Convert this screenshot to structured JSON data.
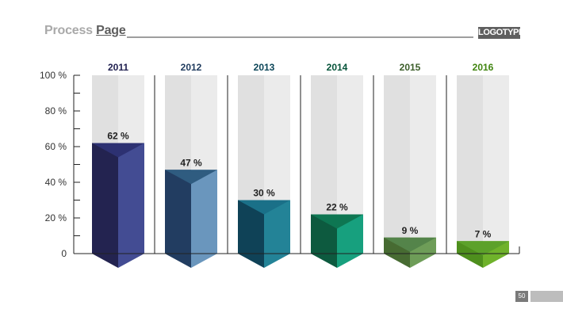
{
  "header": {
    "title_light": "Process",
    "title_strong": "Page",
    "logo": "LOGOTYPE"
  },
  "footer": {
    "page_number": "50"
  },
  "chart_data": {
    "type": "bar",
    "categories": [
      "2011",
      "2012",
      "2013",
      "2014",
      "2015",
      "2016"
    ],
    "values": [
      62,
      47,
      30,
      22,
      9,
      7
    ],
    "value_labels": [
      "62 %",
      "47 %",
      "30 %",
      "22 %",
      "9 %",
      "7 %"
    ],
    "ylim": [
      0,
      100
    ],
    "yticks": [
      0,
      20,
      40,
      60,
      80,
      100
    ],
    "ytick_labels": [
      "0",
      "20 %",
      "40 %",
      "60 %",
      "80 %",
      "100 %"
    ],
    "grid": false,
    "style": "3d-columns-with-background-track",
    "category_colors": [
      "#1f1f4f",
      "#1f3b5e",
      "#0b4558",
      "#06543a",
      "#3c5e2a",
      "#418510"
    ],
    "front_colors": [
      "#232350",
      "#223d61",
      "#0f4257",
      "#0d5a3f",
      "#476b32",
      "#4e8f1d"
    ],
    "side_colors": [
      "#434c93",
      "#6a96bd",
      "#238397",
      "#17a07e",
      "#6e9d58",
      "#6fb22b"
    ],
    "top_colors": [
      "#2d3172",
      "#2f5c80",
      "#1a7088",
      "#0e7652",
      "#54844a",
      "#5ca12a"
    ],
    "track_colors": {
      "front": "#e0e0e0",
      "side": "#ebebeb"
    }
  }
}
